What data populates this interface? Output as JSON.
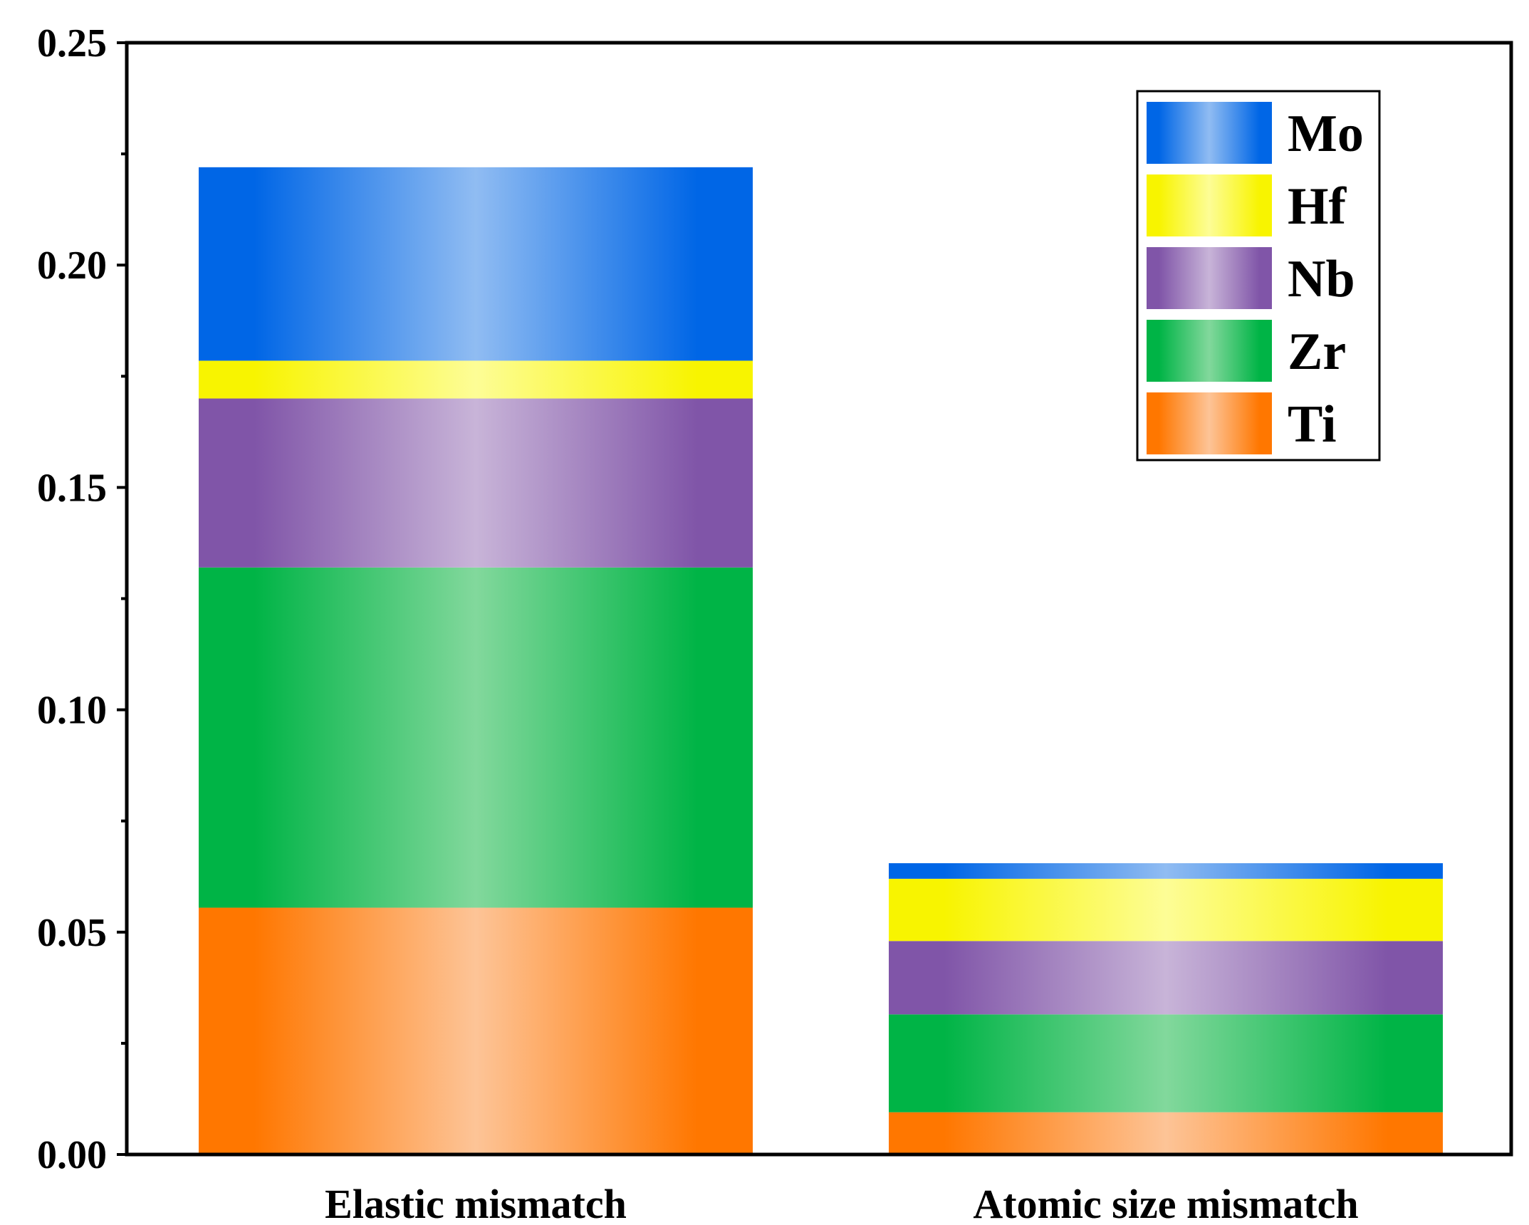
{
  "chart_data": {
    "type": "bar",
    "stacked": true,
    "categories": [
      "Elastic mismatch",
      "Atomic size mismatch"
    ],
    "series": [
      {
        "name": "Ti",
        "values": [
          0.0555,
          0.0095
        ],
        "color": "#ff7700",
        "highlight": "#fdc497"
      },
      {
        "name": "Zr",
        "values": [
          0.0765,
          0.022
        ],
        "color": "#00b446",
        "highlight": "#82d89c"
      },
      {
        "name": "Nb",
        "values": [
          0.038,
          0.0165
        ],
        "color": "#8055a8",
        "highlight": "#c8b4d8"
      },
      {
        "name": "Hf",
        "values": [
          0.0085,
          0.014
        ],
        "color": "#f8f400",
        "highlight": "#fdfd96"
      },
      {
        "name": "Mo",
        "values": [
          0.0435,
          0.0035
        ],
        "color": "#0066e6",
        "highlight": "#90bcf2"
      }
    ],
    "legend_order": [
      "Mo",
      "Hf",
      "Nb",
      "Zr",
      "Ti"
    ],
    "yticks": [
      "0.00",
      "0.05",
      "0.10",
      "0.15",
      "0.20",
      "0.25"
    ],
    "ylim": [
      0,
      0.25
    ],
    "xlabel": "",
    "ylabel": "",
    "title": "",
    "grid": false,
    "legend_position": "top-right"
  }
}
